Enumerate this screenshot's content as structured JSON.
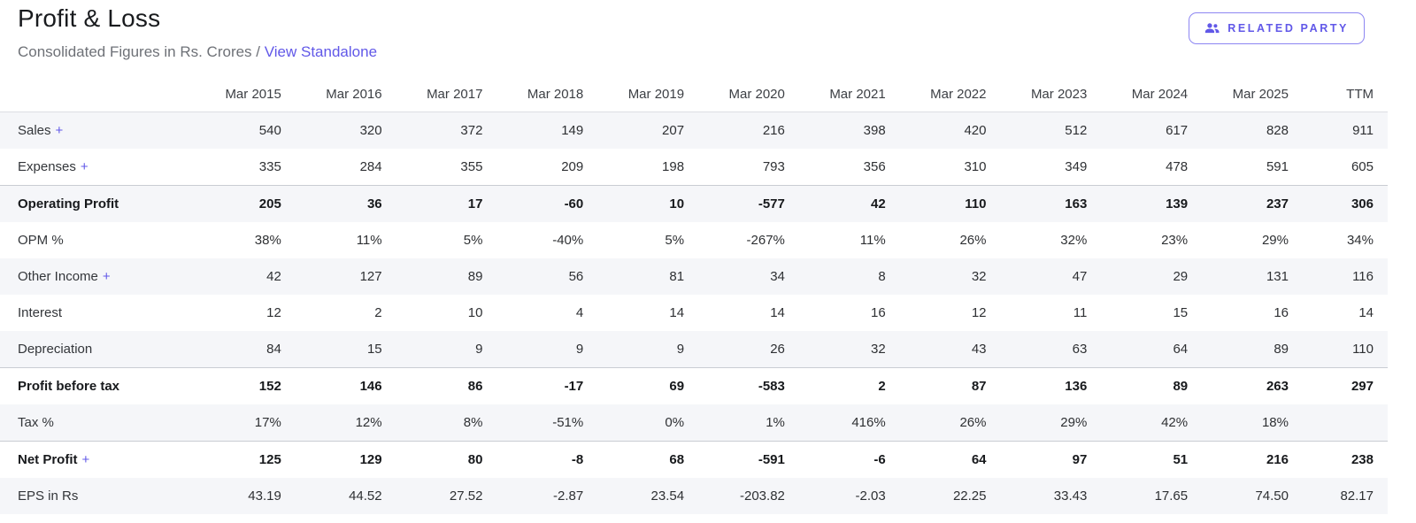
{
  "page": {
    "title": "Profit & Loss",
    "subtitle_prefix": "Consolidated Figures in Rs. Crores / ",
    "subtitle_link": "View Standalone",
    "related_party_label": "RELATED PARTY"
  },
  "colors": {
    "accent": "#6158e8",
    "stripe": "#f5f6f9",
    "strong_border": "#c9ccd3"
  },
  "table": {
    "expand_symbol": "+",
    "columns": [
      "Mar 2015",
      "Mar 2016",
      "Mar 2017",
      "Mar 2018",
      "Mar 2019",
      "Mar 2020",
      "Mar 2021",
      "Mar 2022",
      "Mar 2023",
      "Mar 2024",
      "Mar 2025",
      "TTM"
    ],
    "rows": [
      {
        "label": "Sales",
        "expand": true,
        "bold": false,
        "values": [
          "540",
          "320",
          "372",
          "149",
          "207",
          "216",
          "398",
          "420",
          "512",
          "617",
          "828",
          "911"
        ]
      },
      {
        "label": "Expenses",
        "expand": true,
        "bold": false,
        "values": [
          "335",
          "284",
          "355",
          "209",
          "198",
          "793",
          "356",
          "310",
          "349",
          "478",
          "591",
          "605"
        ]
      },
      {
        "label": "Operating Profit",
        "expand": false,
        "bold": true,
        "values": [
          "205",
          "36",
          "17",
          "-60",
          "10",
          "-577",
          "42",
          "110",
          "163",
          "139",
          "237",
          "306"
        ]
      },
      {
        "label": "OPM %",
        "expand": false,
        "bold": false,
        "values": [
          "38%",
          "11%",
          "5%",
          "-40%",
          "5%",
          "-267%",
          "11%",
          "26%",
          "32%",
          "23%",
          "29%",
          "34%"
        ]
      },
      {
        "label": "Other Income",
        "expand": true,
        "bold": false,
        "values": [
          "42",
          "127",
          "89",
          "56",
          "81",
          "34",
          "8",
          "32",
          "47",
          "29",
          "131",
          "116"
        ]
      },
      {
        "label": "Interest",
        "expand": false,
        "bold": false,
        "values": [
          "12",
          "2",
          "10",
          "4",
          "14",
          "14",
          "16",
          "12",
          "11",
          "15",
          "16",
          "14"
        ]
      },
      {
        "label": "Depreciation",
        "expand": false,
        "bold": false,
        "values": [
          "84",
          "15",
          "9",
          "9",
          "9",
          "26",
          "32",
          "43",
          "63",
          "64",
          "89",
          "110"
        ]
      },
      {
        "label": "Profit before tax",
        "expand": false,
        "bold": true,
        "values": [
          "152",
          "146",
          "86",
          "-17",
          "69",
          "-583",
          "2",
          "87",
          "136",
          "89",
          "263",
          "297"
        ]
      },
      {
        "label": "Tax %",
        "expand": false,
        "bold": false,
        "values": [
          "17%",
          "12%",
          "8%",
          "-51%",
          "0%",
          "1%",
          "416%",
          "26%",
          "29%",
          "42%",
          "18%",
          ""
        ]
      },
      {
        "label": "Net Profit",
        "expand": true,
        "bold": true,
        "values": [
          "125",
          "129",
          "80",
          "-8",
          "68",
          "-591",
          "-6",
          "64",
          "97",
          "51",
          "216",
          "238"
        ]
      },
      {
        "label": "EPS in Rs",
        "expand": false,
        "bold": false,
        "values": [
          "43.19",
          "44.52",
          "27.52",
          "-2.87",
          "23.54",
          "-203.82",
          "-2.03",
          "22.25",
          "33.43",
          "17.65",
          "74.50",
          "82.17"
        ]
      }
    ]
  }
}
